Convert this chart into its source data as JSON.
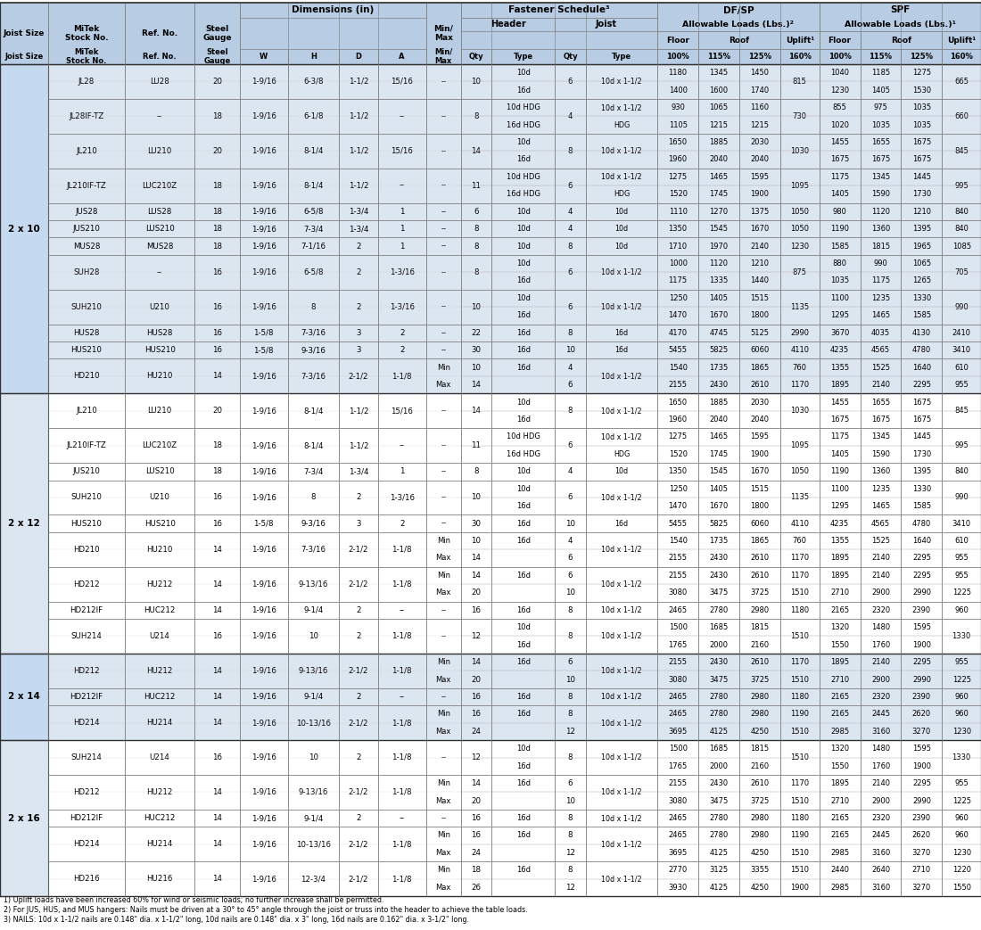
{
  "header_bg": "#b8cce4",
  "sec10_bg": "#dce6f1",
  "sec12_bg": "#ffffff",
  "sec14_bg": "#dce6f1",
  "sec16_bg": "#ffffff",
  "border_color": "#808080",
  "thick_border": "#404040",
  "footnotes": [
    "1) Uplift loads have been increased 60% for wind or seismic loads; no further increase shall be permitted.",
    "2) For JUS, HUS, and MUS hangers: Nails must be driven at a 30° to 45° angle through the joist or truss into the header to achieve the table loads.",
    "3) NAILS: 10d x 1-1/2 nails are 0.148\" dia. x 1-1/2\" long, 10d nails are 0.148\" dia. x 3\" long, 16d nails are 0.162\" dia. x 3-1/2\" long."
  ],
  "sections": {
    "2 x 10": [
      [
        "JL28",
        "LU28",
        "20",
        "1-9/16",
        "6-3/8",
        "1-1/2",
        "15/16",
        "--",
        "10",
        [
          "10d",
          "16d"
        ],
        "6",
        "10d x 1-1/2",
        [
          "1180",
          "1400"
        ],
        [
          "1345",
          "1600"
        ],
        [
          "1450",
          "1740"
        ],
        "815",
        [
          "1040",
          "1230"
        ],
        [
          "1185",
          "1405"
        ],
        [
          "1275",
          "1530"
        ],
        "665"
      ],
      [
        "JL28IF-TZ",
        "--",
        "18",
        "1-9/16",
        "6-1/8",
        "1-1/2",
        "--",
        "--",
        "8",
        [
          "10d HDG",
          "16d HDG"
        ],
        "4",
        [
          "10d x 1-1/2",
          "HDG"
        ],
        [
          "930",
          "1105"
        ],
        [
          "1065",
          "1215"
        ],
        [
          "1160",
          "1215"
        ],
        "730",
        [
          "855",
          "1020"
        ],
        [
          "975",
          "1035"
        ],
        [
          "1035",
          "1035"
        ],
        "660"
      ],
      [
        "JL210",
        "LU210",
        "20",
        "1-9/16",
        "8-1/4",
        "1-1/2",
        "15/16",
        "--",
        "14",
        [
          "10d",
          "16d"
        ],
        "8",
        "10d x 1-1/2",
        [
          "1650",
          "1960"
        ],
        [
          "1885",
          "2040"
        ],
        [
          "2030",
          "2040"
        ],
        "1030",
        [
          "1455",
          "1675"
        ],
        [
          "1655",
          "1675"
        ],
        [
          "1675",
          "1675"
        ],
        "845"
      ],
      [
        "JL210IF-TZ",
        "LUC210Z",
        "18",
        "1-9/16",
        "8-1/4",
        "1-1/2",
        "--",
        "--",
        "11",
        [
          "10d HDG",
          "16d HDG"
        ],
        "6",
        [
          "10d x 1-1/2",
          "HDG"
        ],
        [
          "1275",
          "1520"
        ],
        [
          "1465",
          "1745"
        ],
        [
          "1595",
          "1900"
        ],
        "1095",
        [
          "1175",
          "1405"
        ],
        [
          "1345",
          "1590"
        ],
        [
          "1445",
          "1730"
        ],
        "995"
      ],
      [
        "JUS28",
        "LUS28",
        "18",
        "1-9/16",
        "6-5/8",
        "1-3/4",
        "1",
        "--",
        "6",
        [
          "10d"
        ],
        "4",
        "10d",
        [
          "1110"
        ],
        [
          "1270"
        ],
        [
          "1375"
        ],
        "1050",
        [
          "980"
        ],
        [
          "1120"
        ],
        [
          "1210"
        ],
        "840"
      ],
      [
        "JUS210",
        "LUS210",
        "18",
        "1-9/16",
        "7-3/4",
        "1-3/4",
        "1",
        "--",
        "8",
        [
          "10d"
        ],
        "4",
        "10d",
        [
          "1350"
        ],
        [
          "1545"
        ],
        [
          "1670"
        ],
        "1050",
        [
          "1190"
        ],
        [
          "1360"
        ],
        [
          "1395"
        ],
        "840"
      ],
      [
        "MUS28",
        "MUS28",
        "18",
        "1-9/16",
        "7-1/16",
        "2",
        "1",
        "--",
        "8",
        [
          "10d"
        ],
        "8",
        "10d",
        [
          "1710"
        ],
        [
          "1970"
        ],
        [
          "2140"
        ],
        "1230",
        [
          "1585"
        ],
        [
          "1815"
        ],
        [
          "1965"
        ],
        "1085"
      ],
      [
        "SUH28",
        "--",
        "16",
        "1-9/16",
        "6-5/8",
        "2",
        "1-3/16",
        "--",
        "8",
        [
          "10d",
          "16d"
        ],
        "6",
        "10d x 1-1/2",
        [
          "1000",
          "1175"
        ],
        [
          "1120",
          "1335"
        ],
        [
          "1210",
          "1440"
        ],
        "875",
        [
          "880",
          "1035"
        ],
        [
          "990",
          "1175"
        ],
        [
          "1065",
          "1265"
        ],
        "705"
      ],
      [
        "SUH210",
        "U210",
        "16",
        "1-9/16",
        "8",
        "2",
        "1-3/16",
        "--",
        "10",
        [
          "10d",
          "16d"
        ],
        "6",
        "10d x 1-1/2",
        [
          "1250",
          "1470"
        ],
        [
          "1405",
          "1670"
        ],
        [
          "1515",
          "1800"
        ],
        "1135",
        [
          "1100",
          "1295"
        ],
        [
          "1235",
          "1465"
        ],
        [
          "1330",
          "1585"
        ],
        "990"
      ],
      [
        "HUS28",
        "HUS28",
        "16",
        "1-5/8",
        "7-3/16",
        "3",
        "2",
        "--",
        "22",
        [
          "16d"
        ],
        "8",
        "16d",
        [
          "4170"
        ],
        [
          "4745"
        ],
        [
          "5125"
        ],
        "2990",
        [
          "3670"
        ],
        [
          "4035"
        ],
        [
          "4130"
        ],
        "2410"
      ],
      [
        "HUS210",
        "HUS210",
        "16",
        "1-5/8",
        "9-3/16",
        "3",
        "2",
        "--",
        "30",
        [
          "16d"
        ],
        "10",
        "16d",
        [
          "5455"
        ],
        [
          "5825"
        ],
        [
          "6060"
        ],
        "4110",
        [
          "4235"
        ],
        [
          "4565"
        ],
        [
          "4780"
        ],
        "3410"
      ],
      [
        "HD210",
        "HU210",
        "14",
        "1-9/16",
        "7-3/16",
        "2-1/2",
        "1-1/8",
        "Min/Max",
        [
          "10",
          "14"
        ],
        [
          "16d"
        ],
        [
          "4",
          "6"
        ],
        "10d x 1-1/2",
        [
          "1540",
          "2155"
        ],
        [
          "1735",
          "2430"
        ],
        [
          "1865",
          "2610"
        ],
        [
          "760",
          "1170"
        ],
        [
          "1355",
          "1895"
        ],
        [
          "1525",
          "2140"
        ],
        [
          "1640",
          "2295"
        ],
        [
          "610",
          "955"
        ]
      ]
    ],
    "2 x 12": [
      [
        "JL210",
        "LU210",
        "20",
        "1-9/16",
        "8-1/4",
        "1-1/2",
        "15/16",
        "--",
        "14",
        [
          "10d",
          "16d"
        ],
        "8",
        "10d x 1-1/2",
        [
          "1650",
          "1960"
        ],
        [
          "1885",
          "2040"
        ],
        [
          "2030",
          "2040"
        ],
        "1030",
        [
          "1455",
          "1675"
        ],
        [
          "1655",
          "1675"
        ],
        [
          "1675",
          "1675"
        ],
        "845"
      ],
      [
        "JL210IF-TZ",
        "LUC210Z",
        "18",
        "1-9/16",
        "8-1/4",
        "1-1/2",
        "--",
        "--",
        "11",
        [
          "10d HDG",
          "16d HDG"
        ],
        "6",
        [
          "10d x 1-1/2",
          "HDG"
        ],
        [
          "1275",
          "1520"
        ],
        [
          "1465",
          "1745"
        ],
        [
          "1595",
          "1900"
        ],
        "1095",
        [
          "1175",
          "1405"
        ],
        [
          "1345",
          "1590"
        ],
        [
          "1445",
          "1730"
        ],
        "995"
      ],
      [
        "JUS210",
        "LUS210",
        "18",
        "1-9/16",
        "7-3/4",
        "1-3/4",
        "1",
        "--",
        "8",
        [
          "10d"
        ],
        "4",
        "10d",
        [
          "1350"
        ],
        [
          "1545"
        ],
        [
          "1670"
        ],
        "1050",
        [
          "1190"
        ],
        [
          "1360"
        ],
        [
          "1395"
        ],
        "840"
      ],
      [
        "SUH210",
        "U210",
        "16",
        "1-9/16",
        "8",
        "2",
        "1-3/16",
        "--",
        "10",
        [
          "10d",
          "16d"
        ],
        "6",
        "10d x 1-1/2",
        [
          "1250",
          "1470"
        ],
        [
          "1405",
          "1670"
        ],
        [
          "1515",
          "1800"
        ],
        "1135",
        [
          "1100",
          "1295"
        ],
        [
          "1235",
          "1465"
        ],
        [
          "1330",
          "1585"
        ],
        "990"
      ],
      [
        "HUS210",
        "HUS210",
        "16",
        "1-5/8",
        "9-3/16",
        "3",
        "2",
        "--",
        "30",
        [
          "16d"
        ],
        "10",
        "16d",
        [
          "5455"
        ],
        [
          "5825"
        ],
        [
          "6060"
        ],
        "4110",
        [
          "4235"
        ],
        [
          "4565"
        ],
        [
          "4780"
        ],
        "3410"
      ],
      [
        "HD210",
        "HU210",
        "14",
        "1-9/16",
        "7-3/16",
        "2-1/2",
        "1-1/8",
        "Min/Max",
        [
          "10",
          "14"
        ],
        [
          "16d"
        ],
        [
          "4",
          "6"
        ],
        "10d x 1-1/2",
        [
          "1540",
          "2155"
        ],
        [
          "1735",
          "2430"
        ],
        [
          "1865",
          "2610"
        ],
        [
          "760",
          "1170"
        ],
        [
          "1355",
          "1895"
        ],
        [
          "1525",
          "2140"
        ],
        [
          "1640",
          "2295"
        ],
        [
          "610",
          "955"
        ]
      ],
      [
        "HD212",
        "HU212",
        "14",
        "1-9/16",
        "9-13/16",
        "2-1/2",
        "1-1/8",
        "Min/Max",
        [
          "14",
          "20"
        ],
        [
          "16d"
        ],
        [
          "6",
          "10"
        ],
        "10d x 1-1/2",
        [
          "2155",
          "3080"
        ],
        [
          "2430",
          "3475"
        ],
        [
          "2610",
          "3725"
        ],
        [
          "1170",
          "1510"
        ],
        [
          "1895",
          "2710"
        ],
        [
          "2140",
          "2900"
        ],
        [
          "2295",
          "2990"
        ],
        [
          "955",
          "1225"
        ]
      ],
      [
        "HD212IF",
        "HUC212",
        "14",
        "1-9/16",
        "9-1/4",
        "2",
        "--",
        "--",
        "16",
        [
          "16d"
        ],
        "8",
        "10d x 1-1/2",
        [
          "2465"
        ],
        [
          "2780"
        ],
        [
          "2980"
        ],
        "1180",
        [
          "2165"
        ],
        [
          "2320"
        ],
        [
          "2390"
        ],
        "960"
      ],
      [
        "SUH214",
        "U214",
        "16",
        "1-9/16",
        "10",
        "2",
        "1-1/8",
        "--",
        "12",
        [
          "10d",
          "16d"
        ],
        "8",
        "10d x 1-1/2",
        [
          "1500",
          "1765"
        ],
        [
          "1685",
          "2000"
        ],
        [
          "1815",
          "2160"
        ],
        "1510",
        [
          "1320",
          "1550"
        ],
        [
          "1480",
          "1760"
        ],
        [
          "1595",
          "1900"
        ],
        "1330"
      ]
    ],
    "2 x 14": [
      [
        "HD212",
        "HU212",
        "14",
        "1-9/16",
        "9-13/16",
        "2-1/2",
        "1-1/8",
        "Min/Max",
        [
          "14",
          "20"
        ],
        [
          "16d"
        ],
        [
          "6",
          "10"
        ],
        "10d x 1-1/2",
        [
          "2155",
          "3080"
        ],
        [
          "2430",
          "3475"
        ],
        [
          "2610",
          "3725"
        ],
        [
          "1170",
          "1510"
        ],
        [
          "1895",
          "2710"
        ],
        [
          "2140",
          "2900"
        ],
        [
          "2295",
          "2990"
        ],
        [
          "955",
          "1225"
        ]
      ],
      [
        "HD212IF",
        "HUC212",
        "14",
        "1-9/16",
        "9-1/4",
        "2",
        "--",
        "--",
        "16",
        [
          "16d"
        ],
        "8",
        "10d x 1-1/2",
        [
          "2465"
        ],
        [
          "2780"
        ],
        [
          "2980"
        ],
        "1180",
        [
          "2165"
        ],
        [
          "2320"
        ],
        [
          "2390"
        ],
        "960"
      ],
      [
        "HD214",
        "HU214",
        "14",
        "1-9/16",
        "10-13/16",
        "2-1/2",
        "1-1/8",
        "Min/Max",
        [
          "16",
          "24"
        ],
        [
          "16d"
        ],
        [
          "8",
          "12"
        ],
        "10d x 1-1/2",
        [
          "2465",
          "3695"
        ],
        [
          "2780",
          "4125"
        ],
        [
          "2980",
          "4250"
        ],
        [
          "1190",
          "1510"
        ],
        [
          "2165",
          "2985"
        ],
        [
          "2445",
          "3160"
        ],
        [
          "2620",
          "3270"
        ],
        [
          "960",
          "1230"
        ]
      ]
    ],
    "2 x 16": [
      [
        "SUH214",
        "U214",
        "16",
        "1-9/16",
        "10",
        "2",
        "1-1/8",
        "--",
        "12",
        [
          "10d",
          "16d"
        ],
        "8",
        "10d x 1-1/2",
        [
          "1500",
          "1765"
        ],
        [
          "1685",
          "2000"
        ],
        [
          "1815",
          "2160"
        ],
        "1510",
        [
          "1320",
          "1550"
        ],
        [
          "1480",
          "1760"
        ],
        [
          "1595",
          "1900"
        ],
        "1330"
      ],
      [
        "HD212",
        "HU212",
        "14",
        "1-9/16",
        "9-13/16",
        "2-1/2",
        "1-1/8",
        "Min/Max",
        [
          "14",
          "20"
        ],
        [
          "16d"
        ],
        [
          "6",
          "10"
        ],
        "10d x 1-1/2",
        [
          "2155",
          "3080"
        ],
        [
          "2430",
          "3475"
        ],
        [
          "2610",
          "3725"
        ],
        [
          "1170",
          "1510"
        ],
        [
          "1895",
          "2710"
        ],
        [
          "2140",
          "2900"
        ],
        [
          "2295",
          "2990"
        ],
        [
          "955",
          "1225"
        ]
      ],
      [
        "HD212IF",
        "HUC212",
        "14",
        "1-9/16",
        "9-1/4",
        "2",
        "--",
        "--",
        "16",
        [
          "16d"
        ],
        "8",
        "10d x 1-1/2",
        [
          "2465"
        ],
        [
          "2780"
        ],
        [
          "2980"
        ],
        "1180",
        [
          "2165"
        ],
        [
          "2320"
        ],
        [
          "2390"
        ],
        "960"
      ],
      [
        "HD214",
        "HU214",
        "14",
        "1-9/16",
        "10-13/16",
        "2-1/2",
        "1-1/8",
        "Min/Max",
        [
          "16",
          "24"
        ],
        [
          "16d"
        ],
        [
          "8",
          "12"
        ],
        "10d x 1-1/2",
        [
          "2465",
          "3695"
        ],
        [
          "2780",
          "4125"
        ],
        [
          "2980",
          "4250"
        ],
        [
          "1190",
          "1510"
        ],
        [
          "2165",
          "2985"
        ],
        [
          "2445",
          "3160"
        ],
        [
          "2620",
          "3270"
        ],
        [
          "960",
          "1230"
        ]
      ],
      [
        "HD216",
        "HU216",
        "14",
        "1-9/16",
        "12-3/4",
        "2-1/2",
        "1-1/8",
        "Min/Max",
        [
          "18",
          "26"
        ],
        [
          "16d"
        ],
        [
          "8",
          "12"
        ],
        "10d x 1-1/2",
        [
          "2770",
          "3930"
        ],
        [
          "3125",
          "4125"
        ],
        [
          "3355",
          "4250"
        ],
        [
          "1510",
          "1900"
        ],
        [
          "2440",
          "2985"
        ],
        [
          "2640",
          "3160"
        ],
        [
          "2710",
          "3270"
        ],
        [
          "1220",
          "1550"
        ]
      ]
    ]
  }
}
